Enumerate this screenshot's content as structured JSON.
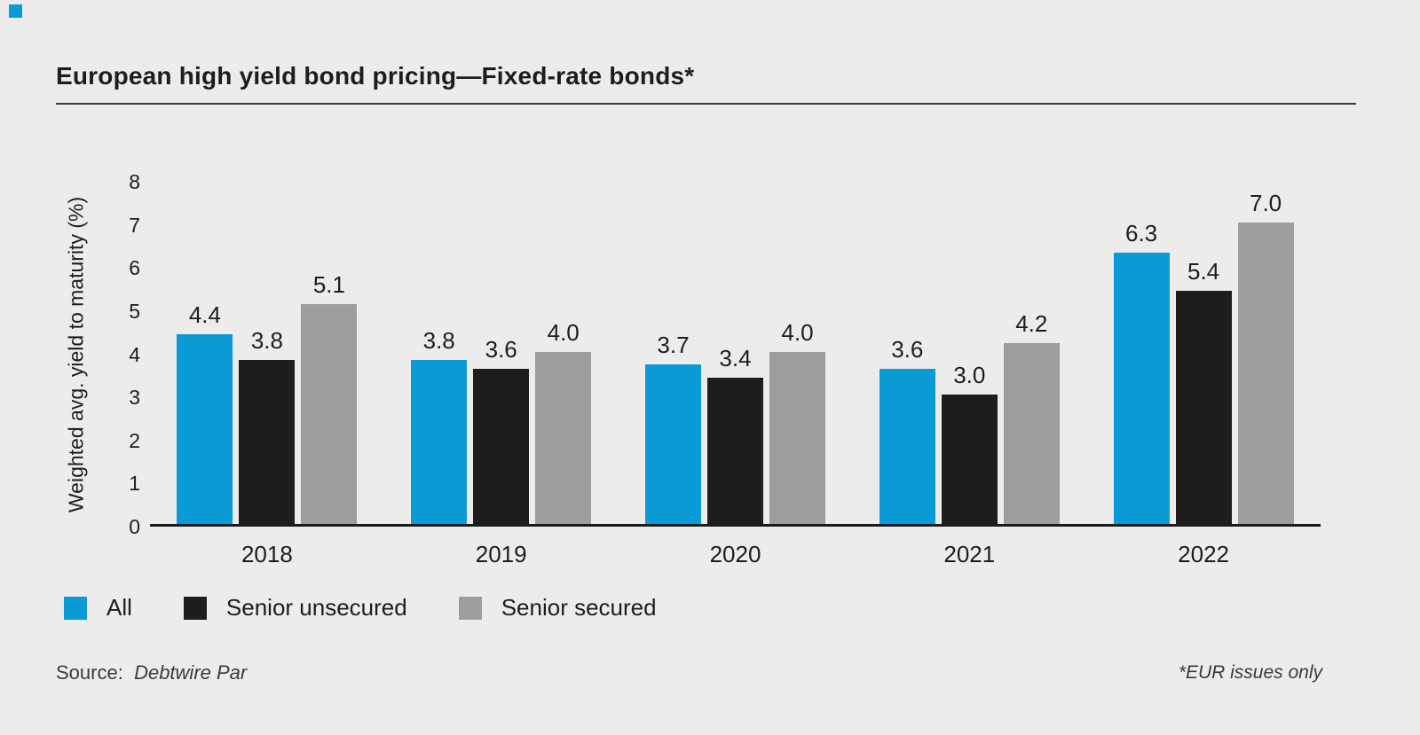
{
  "page": {
    "background_color": "#ececec"
  },
  "brand": {
    "corner_square_color": "#0a9bd7"
  },
  "header": {
    "title": "European high yield bond pricing—Fixed-rate bonds*"
  },
  "chart_data": {
    "type": "bar",
    "categories": [
      "2018",
      "2019",
      "2020",
      "2021",
      "2022"
    ],
    "series": [
      {
        "name": "All",
        "color": "#0a9bd7",
        "values": [
          4.4,
          3.8,
          3.7,
          3.6,
          6.3
        ]
      },
      {
        "name": "Senior unsecured",
        "color": "#1d1d1b",
        "values": [
          3.8,
          3.6,
          3.4,
          3.0,
          5.4
        ]
      },
      {
        "name": "Senior secured",
        "color": "#9d9d9c",
        "values": [
          5.1,
          4.0,
          4.0,
          4.2,
          7.0
        ]
      }
    ],
    "title": "European high yield bond pricing—Fixed-rate bonds*",
    "xlabel": "",
    "ylabel": "Weighted avg. yield to maturity (%)",
    "ylim": [
      0,
      8
    ],
    "yticks": [
      0,
      1,
      2,
      3,
      4,
      5,
      6,
      7,
      8
    ],
    "grid": false,
    "legend_position": "bottom",
    "value_labels_decimals": 1,
    "axis_color": "#1d1d1b"
  },
  "footer": {
    "source_label": "Source:",
    "source_value": "Debtwire Par",
    "footnote": "*EUR issues only"
  }
}
